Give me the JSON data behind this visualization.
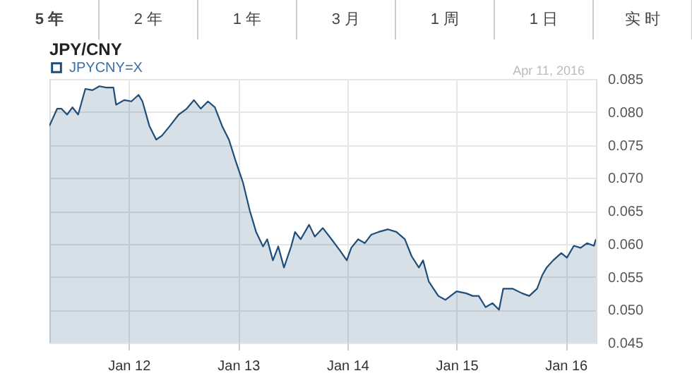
{
  "chart_data": {
    "type": "area",
    "title": "JPY/CNY",
    "legend": "top left",
    "grid": true,
    "annotations": [
      "5 年",
      "2 年",
      "1 年",
      "3 月",
      "1 周",
      "1 日",
      "实 时",
      "Apr 11, 2016"
    ],
    "x": [
      "2011-04-11",
      "2011-05-07",
      "2011-05-21",
      "2011-06-09",
      "2011-06-27",
      "2011-07-16",
      "2011-08-09",
      "2011-09-02",
      "2011-09-25",
      "2011-10-18",
      "2011-11-11",
      "2011-11-20",
      "2011-12-17",
      "2012-01-10",
      "2012-02-03",
      "2012-02-16",
      "2012-03-10",
      "2012-04-02",
      "2012-04-21",
      "2012-05-18",
      "2012-06-16",
      "2012-07-13",
      "2012-08-06",
      "2012-08-29",
      "2012-09-22",
      "2012-10-15",
      "2012-11-08",
      "2012-12-01",
      "2012-12-24",
      "2013-01-17",
      "2013-02-09",
      "2013-03-02",
      "2013-03-25",
      "2013-04-08",
      "2013-04-27",
      "2013-05-15",
      "2013-06-03",
      "2013-06-27",
      "2013-07-10",
      "2013-07-29",
      "2013-08-26",
      "2013-09-14",
      "2013-10-11",
      "2013-11-09",
      "2013-12-07",
      "2013-12-30",
      "2014-01-14",
      "2014-02-06",
      "2014-02-28",
      "2014-03-22",
      "2014-04-15",
      "2014-05-17",
      "2014-06-14",
      "2014-07-12",
      "2014-08-04",
      "2014-08-28",
      "2014-09-11",
      "2014-09-30",
      "2014-11-01",
      "2014-11-25",
      "2015-01-01",
      "2015-02-02",
      "2015-02-24",
      "2015-03-16",
      "2015-04-08",
      "2015-05-01",
      "2015-05-23",
      "2015-06-06",
      "2015-07-07",
      "2015-08-08",
      "2015-09-01",
      "2015-09-27",
      "2015-10-15",
      "2015-10-29",
      "2015-11-20",
      "2015-12-17",
      "2016-01-05",
      "2016-01-28",
      "2016-02-20",
      "2016-03-12",
      "2016-04-04",
      "2016-04-11"
    ],
    "series": [
      {
        "name": "JPYCNY=X",
        "color": "#1f4e79",
        "values": [
          0.0779,
          0.0805,
          0.0805,
          0.0796,
          0.0807,
          0.0796,
          0.0835,
          0.0833,
          0.0839,
          0.0837,
          0.0837,
          0.0811,
          0.0818,
          0.0816,
          0.0826,
          0.0816,
          0.0779,
          0.0758,
          0.0764,
          0.0779,
          0.0796,
          0.0805,
          0.0818,
          0.0805,
          0.0816,
          0.0807,
          0.0779,
          0.0758,
          0.0725,
          0.0693,
          0.065,
          0.0618,
          0.0596,
          0.0607,
          0.0575,
          0.0596,
          0.0564,
          0.0596,
          0.0618,
          0.0607,
          0.0629,
          0.0611,
          0.0624,
          0.0607,
          0.059,
          0.0575,
          0.0594,
          0.0607,
          0.0601,
          0.0614,
          0.0618,
          0.0622,
          0.0618,
          0.0607,
          0.0581,
          0.0564,
          0.0575,
          0.0543,
          0.0521,
          0.0515,
          0.0528,
          0.0525,
          0.0521,
          0.0521,
          0.0504,
          0.051,
          0.05,
          0.0532,
          0.0532,
          0.0525,
          0.0521,
          0.0532,
          0.0553,
          0.0564,
          0.0575,
          0.0586,
          0.0579,
          0.0597,
          0.0594,
          0.0601,
          0.0597,
          0.0607
        ]
      }
    ],
    "xlim": [
      "2011-04-11",
      "2016-04-11"
    ],
    "xticks": [
      {
        "value": "2012-01-01",
        "label": "Jan 12"
      },
      {
        "value": "2013-01-01",
        "label": "Jan 13"
      },
      {
        "value": "2014-01-01",
        "label": "Jan 14"
      },
      {
        "value": "2015-01-01",
        "label": "Jan 15"
      },
      {
        "value": "2016-01-01",
        "label": "Jan 16"
      }
    ],
    "ylim": [
      0.045,
      0.085
    ],
    "yticks": [
      0.045,
      {
        "value": 0.05,
        "label": "0.050"
      },
      0.055,
      {
        "value": 0.06,
        "label": "0.060"
      },
      0.065,
      {
        "value": 0.07,
        "label": "0.070"
      },
      0.075,
      {
        "value": 0.08,
        "label": "0.080"
      },
      0.085
    ]
  }
}
